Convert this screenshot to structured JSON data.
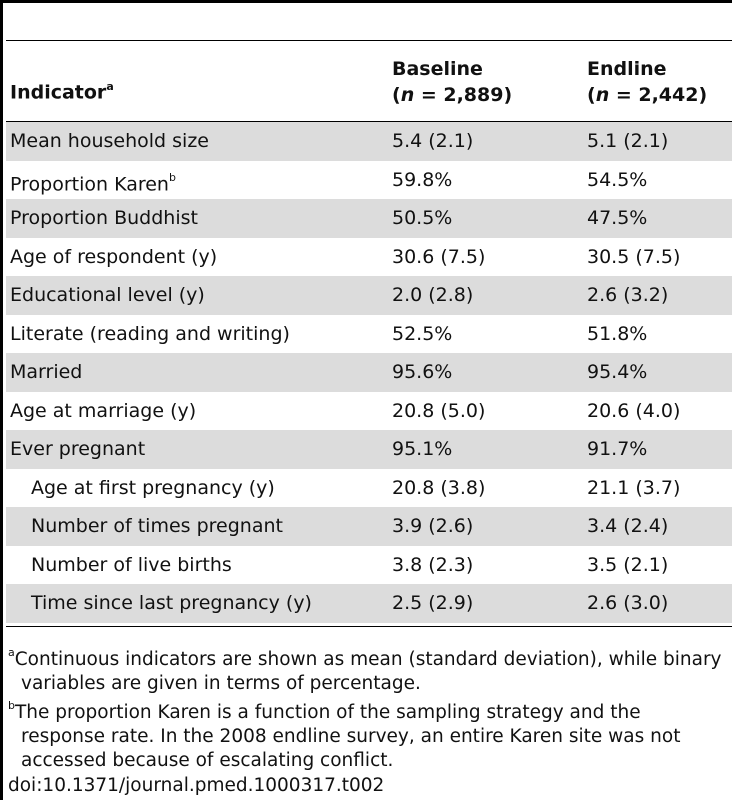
{
  "table": {
    "header": {
      "indicator_label": "Indicator",
      "indicator_sup": "a",
      "baseline_line1": "Baseline",
      "baseline_line2": "(n = 2,889)",
      "endline_line1": "Endline",
      "endline_line2": "(n = 2,442)"
    },
    "rows": [
      {
        "label": "Mean household size",
        "baseline": "5.4 (2.1)",
        "endline": "5.1 (2.1)",
        "sup": "",
        "indent": false
      },
      {
        "label": "Proportion Karen",
        "baseline": "59.8%",
        "endline": "54.5%",
        "sup": "b",
        "indent": false
      },
      {
        "label": "Proportion Buddhist",
        "baseline": "50.5%",
        "endline": "47.5%",
        "sup": "",
        "indent": false
      },
      {
        "label": "Age of respondent (y)",
        "baseline": "30.6 (7.5)",
        "endline": "30.5 (7.5)",
        "sup": "",
        "indent": false
      },
      {
        "label": "Educational level (y)",
        "baseline": "2.0 (2.8)",
        "endline": "2.6 (3.2)",
        "sup": "",
        "indent": false
      },
      {
        "label": "Literate (reading and writing)",
        "baseline": "52.5%",
        "endline": "51.8%",
        "sup": "",
        "indent": false
      },
      {
        "label": "Married",
        "baseline": "95.6%",
        "endline": "95.4%",
        "sup": "",
        "indent": false
      },
      {
        "label": "Age at marriage (y)",
        "baseline": "20.8 (5.0)",
        "endline": "20.6 (4.0)",
        "sup": "",
        "indent": false
      },
      {
        "label": "Ever pregnant",
        "baseline": "95.1%",
        "endline": "91.7%",
        "sup": "",
        "indent": false
      },
      {
        "label": "Age at first pregnancy (y)",
        "baseline": "20.8 (3.8)",
        "endline": "21.1 (3.7)",
        "sup": "",
        "indent": true
      },
      {
        "label": "Number of times pregnant",
        "baseline": "3.9 (2.6)",
        "endline": "3.4 (2.4)",
        "sup": "",
        "indent": true
      },
      {
        "label": "Number of live births",
        "baseline": "3.8 (2.3)",
        "endline": "3.5 (2.1)",
        "sup": "",
        "indent": true
      },
      {
        "label": "Time since last pregnancy (y)",
        "baseline": "2.5 (2.9)",
        "endline": "2.6 (3.0)",
        "sup": "",
        "indent": true
      }
    ]
  },
  "footnotes": {
    "a_mark": "a",
    "a_text": "Continuous indicators are shown as mean (standard deviation), while binary variables are given in terms of percentage.",
    "b_mark": "b",
    "b_text": "The proportion Karen is a function of the sampling strategy and the response rate. In the 2008 endline survey, an entire Karen site was not accessed because of escalating conflict."
  },
  "doi": "doi:10.1371/journal.pmed.1000317.t002"
}
